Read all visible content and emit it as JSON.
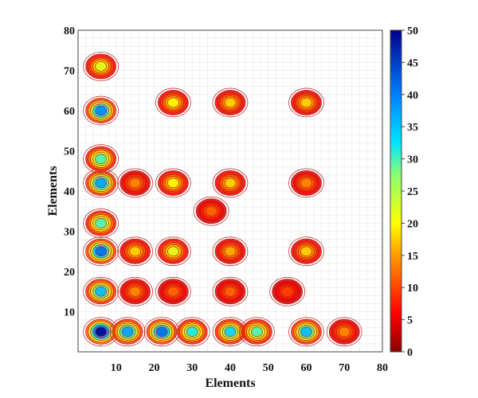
{
  "chart_data": {
    "type": "heatmap",
    "style": "filled-contour-map",
    "xlabel": "Elements",
    "ylabel": "Elements",
    "xlim": [
      0,
      80
    ],
    "ylim": [
      0,
      80
    ],
    "x_ticks": [
      "10",
      "20",
      "30",
      "40",
      "50",
      "60",
      "70",
      "80"
    ],
    "y_ticks": [
      "10",
      "20",
      "30",
      "40",
      "50",
      "60",
      "70",
      "80"
    ],
    "colorbar": {
      "range": [
        0,
        50
      ],
      "ticks": [
        "0",
        "5",
        "10",
        "15",
        "20",
        "25",
        "30",
        "35",
        "40",
        "45",
        "50"
      ],
      "colormap": "jet-reversed"
    },
    "grid": true,
    "hotspots": [
      {
        "x": 6,
        "y": 5,
        "value": 50
      },
      {
        "x": 13,
        "y": 5,
        "value": 38
      },
      {
        "x": 22,
        "y": 5,
        "value": 42
      },
      {
        "x": 30,
        "y": 5,
        "value": 32
      },
      {
        "x": 40,
        "y": 5,
        "value": 34
      },
      {
        "x": 47,
        "y": 5,
        "value": 30
      },
      {
        "x": 60,
        "y": 5,
        "value": 36
      },
      {
        "x": 6,
        "y": 15,
        "value": 36
      },
      {
        "x": 6,
        "y": 25,
        "value": 42
      },
      {
        "x": 6,
        "y": 32,
        "value": 30
      },
      {
        "x": 6,
        "y": 42,
        "value": 38
      },
      {
        "x": 6,
        "y": 48,
        "value": 30
      },
      {
        "x": 6,
        "y": 60,
        "value": 40
      },
      {
        "x": 6,
        "y": 71,
        "value": 22
      },
      {
        "x": 15,
        "y": 15,
        "value": 14
      },
      {
        "x": 15,
        "y": 25,
        "value": 18
      },
      {
        "x": 25,
        "y": 25,
        "value": 22
      },
      {
        "x": 40,
        "y": 25,
        "value": 16
      },
      {
        "x": 60,
        "y": 25,
        "value": 18
      },
      {
        "x": 15,
        "y": 42,
        "value": 14
      },
      {
        "x": 25,
        "y": 42,
        "value": 20
      },
      {
        "x": 40,
        "y": 42,
        "value": 18
      },
      {
        "x": 60,
        "y": 42,
        "value": 14
      },
      {
        "x": 25,
        "y": 62,
        "value": 20
      },
      {
        "x": 40,
        "y": 62,
        "value": 18
      },
      {
        "x": 60,
        "y": 62,
        "value": 18
      },
      {
        "x": 35,
        "y": 35,
        "value": 12
      },
      {
        "x": 25,
        "y": 15,
        "value": 12
      },
      {
        "x": 40,
        "y": 15,
        "value": 12
      },
      {
        "x": 55,
        "y": 15,
        "value": 10
      },
      {
        "x": 70,
        "y": 5,
        "value": 14
      }
    ]
  }
}
